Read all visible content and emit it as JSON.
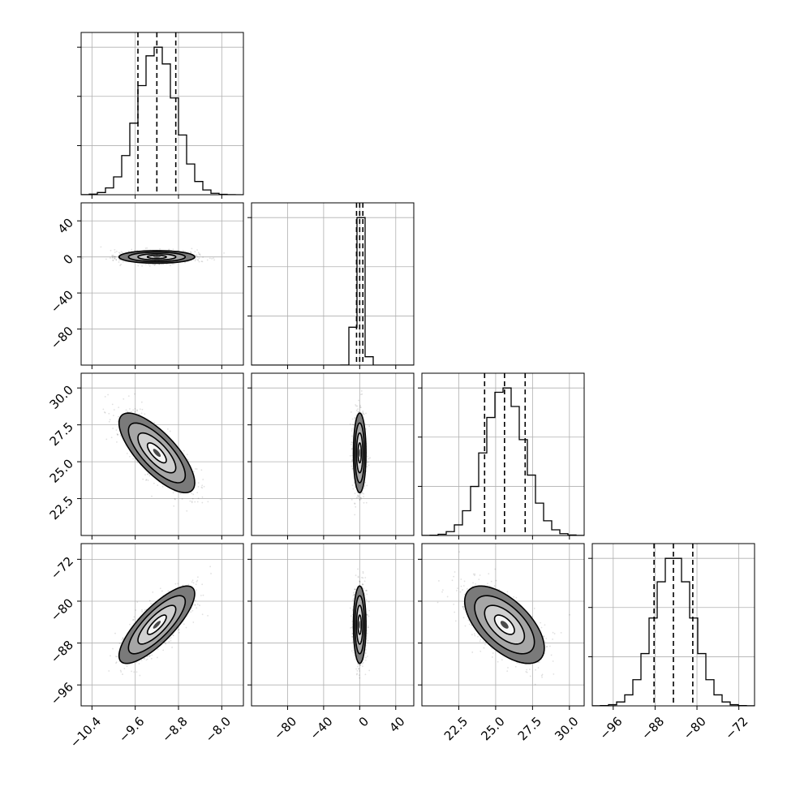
{
  "chart_data": {
    "type": "corner",
    "colors": {
      "ink": "#000000",
      "grid": "#b0b0b0",
      "scatter": "#000000"
    },
    "grid": true,
    "parameters": [
      {
        "mean": -9.2,
        "sd": 0.35,
        "range": [
          -10.6,
          -7.6
        ],
        "ticks": [
          -10.4,
          -9.6,
          -8.8,
          -8.0
        ],
        "tick_labels": [
          "−10.4",
          "−9.6",
          "−8.8",
          "−8.0"
        ],
        "quantiles": [
          -9.55,
          -9.2,
          -8.85
        ]
      },
      {
        "mean": 0.0,
        "sd": 3.5,
        "range": [
          -120,
          60
        ],
        "ticks": [
          -80,
          -40,
          0,
          40
        ],
        "tick_labels": [
          "−80",
          "−40",
          "0",
          "40"
        ],
        "quantiles": [
          -3.5,
          0.0,
          3.5
        ]
      },
      {
        "mean": 25.6,
        "sd": 1.35,
        "range": [
          20.0,
          31.0
        ],
        "ticks": [
          22.5,
          25.0,
          27.5,
          30.0
        ],
        "tick_labels": [
          "22.5",
          "25.0",
          "27.5",
          "30.0"
        ],
        "quantiles": [
          24.25,
          25.6,
          27.0
        ]
      },
      {
        "mean": -84.5,
        "sd": 3.7,
        "range": [
          -100,
          -69
        ],
        "ticks": [
          -96,
          -88,
          -80,
          -72
        ],
        "tick_labels": [
          "−96",
          "−88",
          "−80",
          "−72"
        ],
        "quantiles": [
          -88.2,
          -84.5,
          -80.8
        ]
      }
    ],
    "correlations": [
      [
        1.0,
        0.0,
        -0.75,
        0.8
      ],
      [
        0.0,
        1.0,
        0.0,
        0.0
      ],
      [
        -0.75,
        0.0,
        1.0,
        -0.6
      ],
      [
        0.8,
        0.0,
        -0.6,
        1.0
      ]
    ],
    "histogram_bins": 20,
    "contour_levels_sigma": [
      0.5,
      1.0,
      1.5,
      2.0
    ]
  }
}
